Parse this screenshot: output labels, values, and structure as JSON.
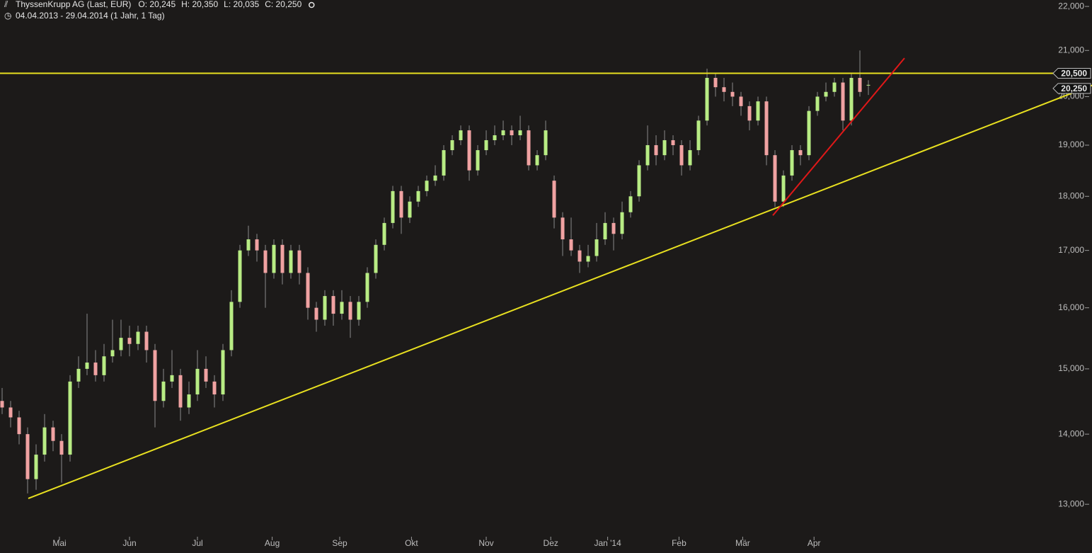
{
  "chart_data": {
    "type": "candlestick",
    "title": "ThyssenKrupp AG (Last, EUR)",
    "info": [
      "O: 20,245",
      "H: 20,350",
      "L: 20,035",
      "C: 20,250"
    ],
    "subtitle": "04.04.2013 - 29.04.2014 (1 Jahr, 1 Tag)",
    "log_scale": true,
    "up_color": "#b8ec84",
    "down_color": "#f0a2a2",
    "wick_color": "#8a8a8a",
    "xlim": [
      -0.25,
      128.33
    ],
    "ylim": [
      12.59,
      22.15
    ],
    "xticks": [
      {
        "value": 6.75,
        "label": "Mai"
      },
      {
        "value": 15,
        "label": "Jun"
      },
      {
        "value": 23,
        "label": "Jul"
      },
      {
        "value": 31.8,
        "label": "Aug"
      },
      {
        "value": 39.75,
        "label": "Sep"
      },
      {
        "value": 48.2,
        "label": "Okt"
      },
      {
        "value": 57,
        "label": "Nov"
      },
      {
        "value": 64.6,
        "label": "Dez"
      },
      {
        "value": 71.3,
        "label": "Jan '14"
      },
      {
        "value": 79.7,
        "label": "Feb"
      },
      {
        "value": 87.2,
        "label": "Mär"
      },
      {
        "value": 95.6,
        "label": "Apr"
      }
    ],
    "yticks": [
      {
        "value": 13,
        "label": "13,000"
      },
      {
        "value": 14,
        "label": "14,000"
      },
      {
        "value": 15,
        "label": "15,000"
      },
      {
        "value": 16,
        "label": "16,000"
      },
      {
        "value": 17,
        "label": "17,000"
      },
      {
        "value": 18,
        "label": "18,000"
      },
      {
        "value": 19,
        "label": "19,000"
      },
      {
        "value": 20,
        "label": "20,000"
      },
      {
        "value": 21,
        "label": "21,000"
      },
      {
        "value": 22,
        "label": "22,000"
      }
    ],
    "ohlc": [
      [
        14.5,
        14.7,
        14.3,
        14.4
      ],
      [
        14.4,
        14.5,
        14.1,
        14.25
      ],
      [
        14.25,
        14.35,
        13.85,
        14.0
      ],
      [
        14.0,
        14.1,
        13.15,
        13.35
      ],
      [
        13.35,
        13.85,
        13.2,
        13.7
      ],
      [
        13.7,
        14.3,
        13.6,
        14.1
      ],
      [
        14.1,
        14.2,
        13.75,
        13.9
      ],
      [
        13.9,
        14.0,
        13.3,
        13.7
      ],
      [
        13.7,
        14.9,
        13.6,
        14.8
      ],
      [
        14.8,
        15.2,
        14.7,
        15.0
      ],
      [
        15.0,
        15.9,
        14.9,
        15.1
      ],
      [
        15.1,
        15.3,
        14.8,
        14.9
      ],
      [
        14.9,
        15.4,
        14.8,
        15.2
      ],
      [
        15.2,
        15.8,
        15.1,
        15.3
      ],
      [
        15.3,
        15.8,
        15.2,
        15.5
      ],
      [
        15.5,
        15.7,
        15.2,
        15.4
      ],
      [
        15.4,
        15.7,
        15.3,
        15.6
      ],
      [
        15.6,
        15.7,
        15.1,
        15.3
      ],
      [
        15.3,
        15.4,
        14.1,
        14.5
      ],
      [
        14.5,
        15.0,
        14.4,
        14.8
      ],
      [
        14.8,
        15.3,
        14.7,
        14.9
      ],
      [
        14.9,
        15.0,
        14.2,
        14.4
      ],
      [
        14.4,
        14.8,
        14.3,
        14.6
      ],
      [
        14.6,
        15.3,
        14.5,
        15.0
      ],
      [
        15.0,
        15.2,
        14.7,
        14.8
      ],
      [
        14.8,
        14.9,
        14.4,
        14.6
      ],
      [
        14.6,
        15.4,
        14.5,
        15.3
      ],
      [
        15.3,
        16.3,
        15.2,
        16.1
      ],
      [
        16.1,
        17.1,
        16.0,
        17.0
      ],
      [
        17.0,
        17.45,
        16.9,
        17.2
      ],
      [
        17.2,
        17.3,
        16.8,
        17.0
      ],
      [
        17.0,
        17.1,
        16.0,
        16.6
      ],
      [
        16.6,
        17.2,
        16.5,
        17.1
      ],
      [
        17.1,
        17.2,
        16.4,
        16.6
      ],
      [
        16.6,
        17.1,
        16.5,
        17.0
      ],
      [
        17.0,
        17.1,
        16.4,
        16.6
      ],
      [
        16.6,
        16.7,
        15.8,
        16.0
      ],
      [
        16.0,
        16.1,
        15.6,
        15.8
      ],
      [
        15.8,
        16.3,
        15.7,
        16.2
      ],
      [
        16.2,
        16.3,
        15.7,
        15.9
      ],
      [
        15.9,
        16.3,
        15.8,
        16.1
      ],
      [
        16.1,
        16.2,
        15.5,
        15.8
      ],
      [
        15.8,
        16.2,
        15.7,
        16.1
      ],
      [
        16.1,
        16.7,
        16.0,
        16.6
      ],
      [
        16.6,
        17.2,
        16.5,
        17.1
      ],
      [
        17.1,
        17.6,
        17.0,
        17.5
      ],
      [
        17.5,
        18.2,
        17.4,
        18.1
      ],
      [
        18.1,
        18.2,
        17.3,
        17.6
      ],
      [
        17.6,
        18.0,
        17.5,
        17.9
      ],
      [
        17.9,
        18.2,
        17.8,
        18.1
      ],
      [
        18.1,
        18.4,
        18.0,
        18.3
      ],
      [
        18.3,
        18.6,
        18.2,
        18.4
      ],
      [
        18.4,
        19.0,
        18.3,
        18.9
      ],
      [
        18.9,
        19.2,
        18.8,
        19.1
      ],
      [
        19.1,
        19.4,
        19.0,
        19.3
      ],
      [
        19.3,
        19.4,
        18.3,
        18.5
      ],
      [
        18.5,
        19.0,
        18.4,
        18.9
      ],
      [
        18.9,
        19.3,
        18.8,
        19.1
      ],
      [
        19.1,
        19.4,
        19.0,
        19.2
      ],
      [
        19.2,
        19.5,
        19.1,
        19.3
      ],
      [
        19.3,
        19.4,
        19.0,
        19.2
      ],
      [
        19.2,
        19.6,
        19.1,
        19.3
      ],
      [
        19.3,
        19.4,
        18.5,
        18.6
      ],
      [
        18.6,
        18.9,
        18.5,
        18.8
      ],
      [
        18.8,
        19.5,
        18.7,
        19.3
      ],
      [
        18.3,
        18.4,
        17.4,
        17.6
      ],
      [
        17.6,
        17.7,
        16.9,
        17.2
      ],
      [
        17.2,
        17.6,
        16.9,
        17.0
      ],
      [
        17.0,
        17.1,
        16.6,
        16.8
      ],
      [
        16.8,
        17.1,
        16.7,
        16.9
      ],
      [
        16.9,
        17.5,
        16.8,
        17.2
      ],
      [
        17.2,
        17.7,
        17.1,
        17.5
      ],
      [
        17.5,
        17.6,
        17.0,
        17.3
      ],
      [
        17.3,
        17.9,
        17.2,
        17.7
      ],
      [
        17.7,
        18.1,
        17.6,
        18.0
      ],
      [
        18.0,
        18.7,
        17.9,
        18.6
      ],
      [
        18.6,
        19.4,
        18.5,
        19.0
      ],
      [
        19.0,
        19.2,
        18.6,
        18.8
      ],
      [
        18.8,
        19.3,
        18.7,
        19.1
      ],
      [
        19.1,
        19.2,
        18.8,
        19.0
      ],
      [
        19.0,
        19.1,
        18.4,
        18.6
      ],
      [
        18.6,
        19.1,
        18.5,
        18.9
      ],
      [
        18.9,
        19.6,
        18.8,
        19.5
      ],
      [
        19.5,
        20.6,
        19.4,
        20.4
      ],
      [
        20.4,
        20.5,
        20.0,
        20.2
      ],
      [
        20.2,
        20.4,
        19.9,
        20.1
      ],
      [
        20.1,
        20.3,
        19.8,
        20.0
      ],
      [
        20.0,
        20.1,
        19.6,
        19.8
      ],
      [
        19.8,
        19.9,
        19.3,
        19.5
      ],
      [
        19.5,
        20.0,
        19.4,
        19.9
      ],
      [
        19.9,
        20.0,
        18.6,
        18.8
      ],
      [
        18.8,
        18.9,
        17.8,
        17.9
      ],
      [
        17.9,
        18.5,
        17.8,
        18.4
      ],
      [
        18.4,
        19.0,
        18.3,
        18.9
      ],
      [
        18.9,
        19.0,
        18.6,
        18.8
      ],
      [
        18.8,
        19.8,
        18.7,
        19.7
      ],
      [
        19.7,
        20.1,
        19.6,
        20.0
      ],
      [
        20.0,
        20.3,
        19.9,
        20.1
      ],
      [
        20.1,
        20.4,
        20.0,
        20.3
      ],
      [
        20.3,
        20.4,
        19.3,
        19.5
      ],
      [
        19.5,
        20.5,
        19.4,
        20.4
      ],
      [
        20.4,
        21.0,
        20.0,
        20.1
      ],
      [
        20.245,
        20.35,
        20.035,
        20.25
      ]
    ],
    "hline": {
      "value": 20.5,
      "label": "20,500",
      "color": "#e8e020"
    },
    "last_price": {
      "value": 20.25,
      "label": "20,250"
    },
    "trend_lines": [
      {
        "color": "#e8e020",
        "x": [
          3.08,
          128.33
        ],
        "y": [
          13.08,
          20.24
        ]
      },
      {
        "color": "#e01818",
        "x": [
          90.75,
          106.25
        ],
        "y": [
          17.64,
          20.83
        ]
      }
    ]
  }
}
